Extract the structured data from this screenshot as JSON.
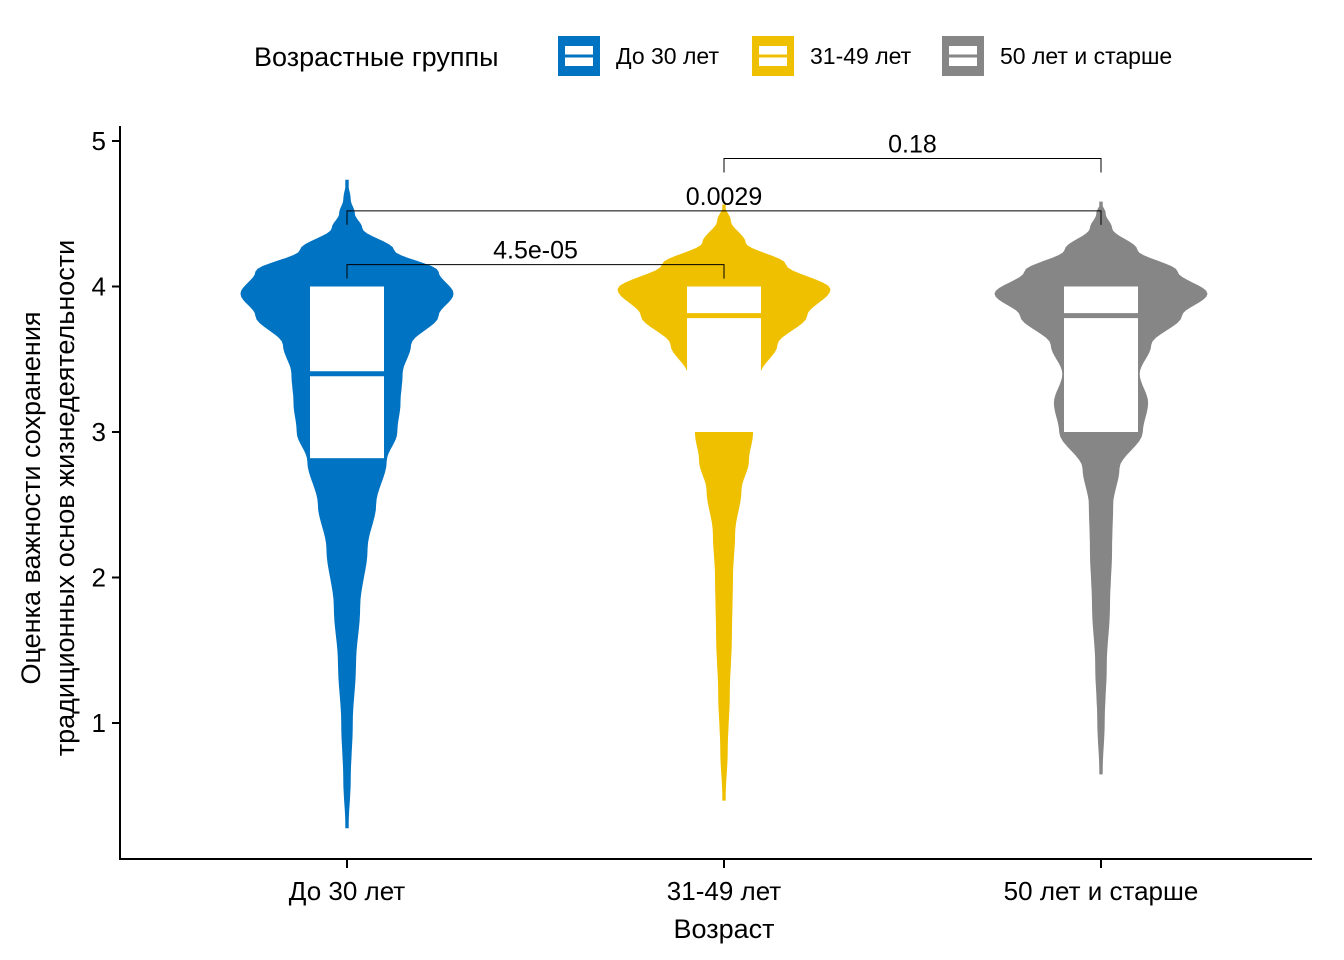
{
  "chart_data": {
    "type": "violin",
    "title": "",
    "xlabel": "Возраст",
    "ylabel_lines": [
      "Оценка важности сохранения",
      "традиционных основ жизнедеятельности"
    ],
    "ylim": [
      0.15,
      5.1
    ],
    "yticks": [
      1,
      2,
      3,
      4,
      5
    ],
    "categories": [
      "До 30 лет",
      "31-49 лет",
      "50 лет и старше"
    ],
    "legend": {
      "title": "Возрастные группы",
      "position": "top",
      "items": [
        "До 30 лет",
        "31-49 лет",
        "50 лет и старше"
      ]
    },
    "grid": false,
    "series": [
      {
        "name": "До 30 лет",
        "color": "#0073C2",
        "box": {
          "q1": 2.82,
          "median": 3.4,
          "q3": 4.0
        },
        "violin_min": 0.28,
        "violin_max": 4.73,
        "density": [
          [
            0.28,
            0.01
          ],
          [
            0.6,
            0.03
          ],
          [
            1.0,
            0.05
          ],
          [
            1.4,
            0.08
          ],
          [
            1.8,
            0.12
          ],
          [
            2.2,
            0.19
          ],
          [
            2.5,
            0.27
          ],
          [
            2.8,
            0.37
          ],
          [
            3.0,
            0.47
          ],
          [
            3.2,
            0.5
          ],
          [
            3.4,
            0.52
          ],
          [
            3.6,
            0.6
          ],
          [
            3.8,
            0.86
          ],
          [
            3.95,
            1.0
          ],
          [
            4.1,
            0.86
          ],
          [
            4.25,
            0.44
          ],
          [
            4.4,
            0.14
          ],
          [
            4.5,
            0.07
          ],
          [
            4.6,
            0.03
          ],
          [
            4.73,
            0.0
          ]
        ]
      },
      {
        "name": "31-49 лет",
        "color": "#EFC000",
        "box": {
          "q1": 3.0,
          "median": 3.8,
          "q3": 4.0
        },
        "violin_min": 0.47,
        "violin_max": 4.56,
        "density": [
          [
            0.47,
            0.01
          ],
          [
            0.8,
            0.03
          ],
          [
            1.2,
            0.05
          ],
          [
            1.6,
            0.07
          ],
          [
            2.0,
            0.08
          ],
          [
            2.3,
            0.1
          ],
          [
            2.6,
            0.16
          ],
          [
            2.8,
            0.23
          ],
          [
            3.0,
            0.27
          ],
          [
            3.2,
            0.29
          ],
          [
            3.4,
            0.34
          ],
          [
            3.6,
            0.5
          ],
          [
            3.8,
            0.78
          ],
          [
            3.98,
            1.0
          ],
          [
            4.15,
            0.58
          ],
          [
            4.3,
            0.2
          ],
          [
            4.45,
            0.06
          ],
          [
            4.56,
            0.0
          ]
        ]
      },
      {
        "name": "50 лет и старше",
        "color": "#868686",
        "box": {
          "q1": 3.0,
          "median": 3.8,
          "q3": 4.0
        },
        "violin_min": 0.65,
        "violin_max": 4.58,
        "density": [
          [
            0.65,
            0.01
          ],
          [
            1.0,
            0.03
          ],
          [
            1.4,
            0.05
          ],
          [
            1.8,
            0.08
          ],
          [
            2.2,
            0.1
          ],
          [
            2.5,
            0.11
          ],
          [
            2.75,
            0.17
          ],
          [
            3.0,
            0.39
          ],
          [
            3.2,
            0.44
          ],
          [
            3.4,
            0.36
          ],
          [
            3.6,
            0.47
          ],
          [
            3.8,
            0.76
          ],
          [
            3.95,
            1.0
          ],
          [
            4.1,
            0.72
          ],
          [
            4.25,
            0.34
          ],
          [
            4.4,
            0.1
          ],
          [
            4.5,
            0.04
          ],
          [
            4.58,
            0.0
          ]
        ]
      }
    ],
    "comparisons": [
      {
        "from": "До 30 лет",
        "to": "31-49 лет",
        "label": "4.5e-05",
        "y": 4.15
      },
      {
        "from": "До 30 лет",
        "to": "50 лет и старше",
        "label": "0.0029",
        "y": 4.52
      },
      {
        "from": "31-49 лет",
        "to": "50 лет и старше",
        "label": "0.18",
        "y": 4.88
      }
    ]
  }
}
